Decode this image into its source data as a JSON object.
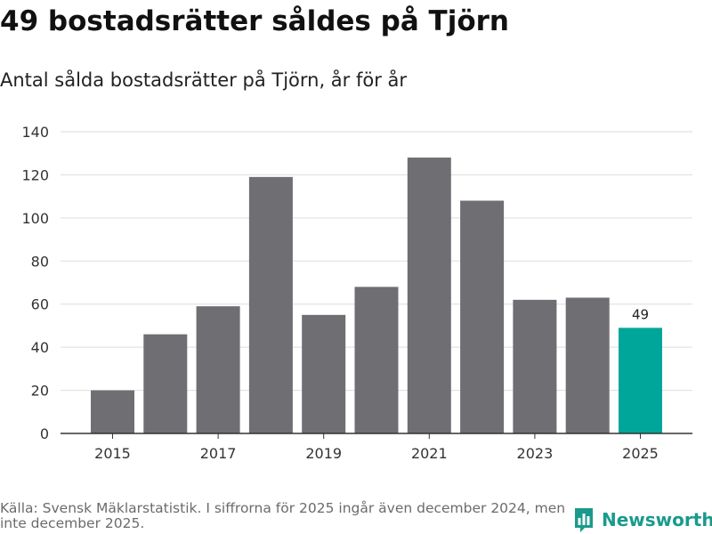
{
  "header": {
    "title": "49 bostadsrätter såldes på Tjörn",
    "subtitle": "Antal sålda bostadsrätter på Tjörn, år för år"
  },
  "footer": {
    "source": "Källa: Svensk Mäklarstatistik. I siffrorna för 2025 ingår även december 2024, men inte december 2025.",
    "brand": "Newsworthy"
  },
  "colors": {
    "bar": "#6e6e73",
    "highlight": "#00a69a",
    "grid": "#dddddd",
    "axis": "#333333",
    "brand": "#1a9a8c"
  },
  "chart_data": {
    "type": "bar",
    "title": "49 bostadsrätter såldes på Tjörn",
    "subtitle": "Antal sålda bostadsrätter på Tjörn, år för år",
    "xlabel": "",
    "ylabel": "",
    "categories": [
      "2015",
      "2016",
      "2017",
      "2018",
      "2019",
      "2020",
      "2021",
      "2022",
      "2023",
      "2024",
      "2025"
    ],
    "values": [
      20,
      46,
      59,
      119,
      55,
      68,
      128,
      108,
      62,
      63,
      49
    ],
    "x_tick_labels": [
      "2015",
      "2017",
      "2019",
      "2021",
      "2023",
      "2025"
    ],
    "y_ticks": [
      0,
      20,
      40,
      60,
      80,
      100,
      120,
      140
    ],
    "ylim": [
      0,
      140
    ],
    "grid": true,
    "highlight_category": "2025",
    "data_labels": [
      {
        "category": "2025",
        "text": "49"
      }
    ]
  }
}
